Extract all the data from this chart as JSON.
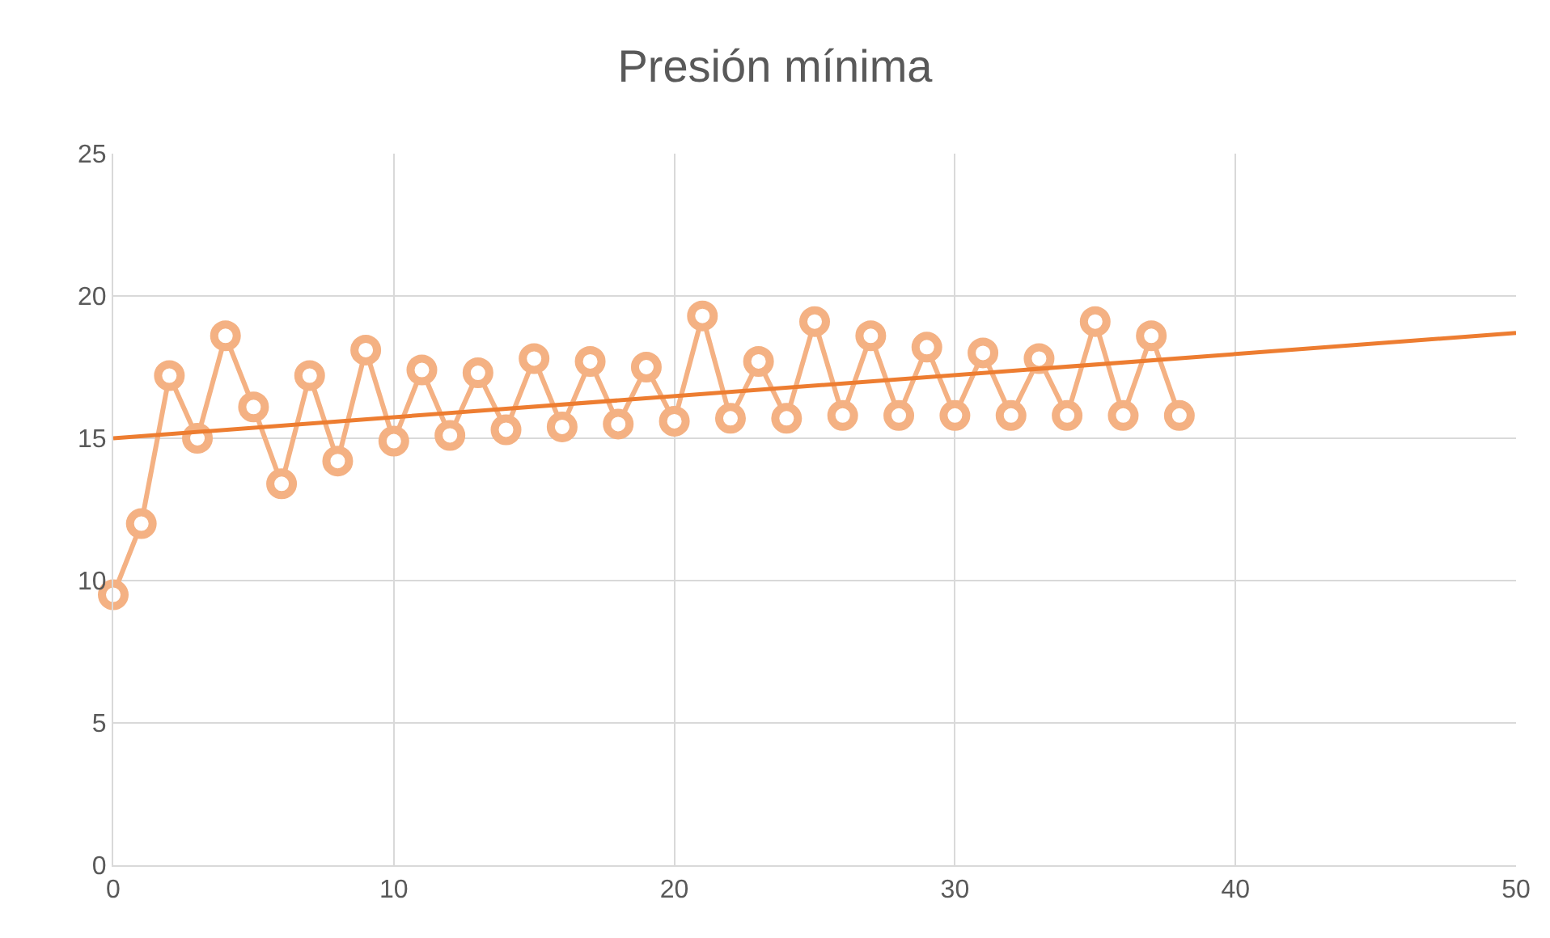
{
  "chart_data": {
    "type": "line",
    "title": "Presión mínima",
    "x": [
      0,
      1,
      2,
      3,
      4,
      5,
      6,
      7,
      8,
      9,
      10,
      11,
      12,
      13,
      14,
      15,
      16,
      17,
      18,
      19,
      20,
      21,
      22,
      23,
      24,
      25,
      26,
      27,
      28,
      29,
      30,
      31,
      32,
      33,
      34,
      35,
      36,
      37,
      38
    ],
    "series": [
      {
        "color": "#f4b183",
        "marker": "circle",
        "values": [
          9.5,
          12.0,
          17.2,
          15.0,
          18.6,
          16.1,
          13.4,
          17.2,
          14.2,
          18.1,
          14.9,
          17.4,
          15.1,
          17.3,
          15.3,
          17.8,
          15.4,
          17.7,
          15.5,
          17.5,
          15.6,
          19.3,
          15.7,
          17.7,
          15.7,
          19.1,
          15.8,
          18.6,
          15.8,
          18.2,
          15.8,
          18.0,
          15.8,
          17.8,
          15.8,
          19.1,
          15.8,
          18.6,
          15.8
        ]
      },
      {
        "color": "#ed7d31",
        "marker": "none",
        "x": [
          0,
          50
        ],
        "values": [
          15.0,
          18.7
        ]
      }
    ],
    "xlim": [
      0,
      50
    ],
    "xticks": [
      0,
      10,
      20,
      30,
      40,
      50
    ],
    "ylim": [
      0,
      25
    ],
    "yticks": [
      0,
      5,
      10,
      15,
      20,
      25
    ],
    "grid": true,
    "legend": false
  }
}
